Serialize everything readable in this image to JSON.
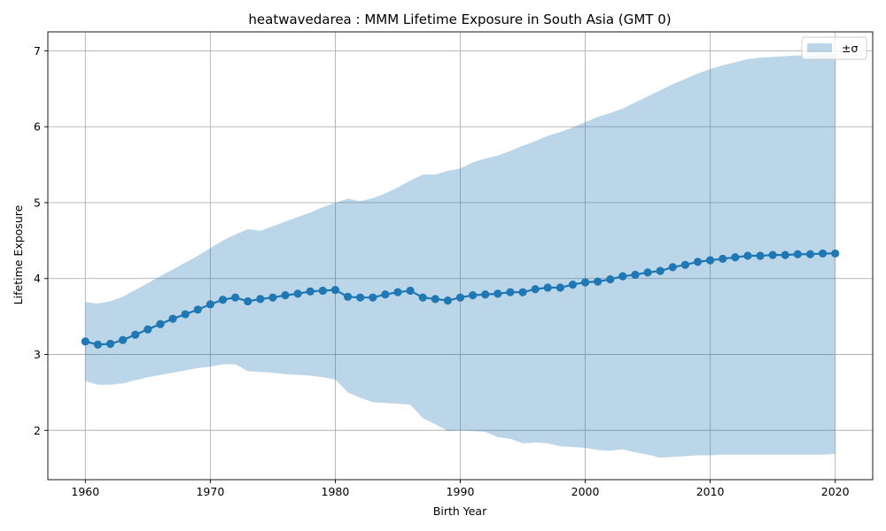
{
  "chart_data": {
    "type": "line",
    "title": "heatwavedarea : MMM Lifetime Exposure in South Asia (GMT 0)",
    "xlabel": "Birth Year",
    "ylabel": "Lifetime Exposure",
    "xlim": [
      1957,
      2023
    ],
    "ylim": [
      1.35,
      7.25
    ],
    "xticks": [
      1960,
      1970,
      1980,
      1990,
      2000,
      2010,
      2020
    ],
    "yticks": [
      2,
      3,
      4,
      5,
      6,
      7
    ],
    "grid": true,
    "legend": {
      "placement": "top-right",
      "entries": [
        {
          "label": "±σ",
          "kind": "band"
        }
      ]
    },
    "colors": {
      "line": "#1f77b4",
      "band": "#1f77b4",
      "band_opacity": 0.3
    },
    "x": [
      1960,
      1961,
      1962,
      1963,
      1964,
      1965,
      1966,
      1967,
      1968,
      1969,
      1970,
      1971,
      1972,
      1973,
      1974,
      1975,
      1976,
      1977,
      1978,
      1979,
      1980,
      1981,
      1982,
      1983,
      1984,
      1985,
      1986,
      1987,
      1988,
      1989,
      1990,
      1991,
      1992,
      1993,
      1994,
      1995,
      1996,
      1997,
      1998,
      1999,
      2000,
      2001,
      2002,
      2003,
      2004,
      2005,
      2006,
      2007,
      2008,
      2009,
      2010,
      2011,
      2012,
      2013,
      2014,
      2015,
      2016,
      2017,
      2018,
      2019,
      2020
    ],
    "series": [
      {
        "kind": "line",
        "values": [
          3.17,
          3.13,
          3.14,
          3.19,
          3.26,
          3.33,
          3.4,
          3.47,
          3.53,
          3.59,
          3.66,
          3.72,
          3.75,
          3.7,
          3.73,
          3.75,
          3.78,
          3.8,
          3.83,
          3.84,
          3.85,
          3.76,
          3.75,
          3.75,
          3.79,
          3.82,
          3.84,
          3.75,
          3.73,
          3.71,
          3.75,
          3.78,
          3.79,
          3.8,
          3.82,
          3.82,
          3.86,
          3.88,
          3.88,
          3.92,
          3.95,
          3.96,
          3.99,
          4.03,
          4.05,
          4.08,
          4.1,
          4.15,
          4.18,
          4.22,
          4.24,
          4.26,
          4.28,
          4.3,
          4.3,
          4.31,
          4.31,
          4.32,
          4.32,
          4.33,
          4.33
        ]
      },
      {
        "name": "±σ",
        "kind": "band",
        "upper": [
          3.69,
          3.67,
          3.7,
          3.76,
          3.85,
          3.94,
          4.03,
          4.12,
          4.21,
          4.3,
          4.4,
          4.5,
          4.58,
          4.65,
          4.63,
          4.69,
          4.75,
          4.81,
          4.87,
          4.94,
          5.0,
          5.05,
          5.02,
          5.06,
          5.12,
          5.2,
          5.29,
          5.37,
          5.37,
          5.42,
          5.45,
          5.53,
          5.58,
          5.62,
          5.68,
          5.75,
          5.81,
          5.88,
          5.93,
          5.99,
          6.06,
          6.13,
          6.18,
          6.24,
          6.32,
          6.4,
          6.48,
          6.56,
          6.63,
          6.7,
          6.76,
          6.81,
          6.85,
          6.89,
          6.91,
          6.92,
          6.93,
          6.94,
          6.94,
          6.95,
          6.95
        ],
        "lower": [
          2.65,
          2.6,
          2.6,
          2.62,
          2.66,
          2.7,
          2.73,
          2.76,
          2.79,
          2.82,
          2.84,
          2.87,
          2.87,
          2.78,
          2.77,
          2.76,
          2.74,
          2.73,
          2.72,
          2.7,
          2.67,
          2.5,
          2.43,
          2.37,
          2.36,
          2.35,
          2.34,
          2.16,
          2.08,
          1.99,
          2.0,
          1.99,
          1.98,
          1.91,
          1.89,
          1.83,
          1.84,
          1.83,
          1.79,
          1.78,
          1.77,
          1.74,
          1.73,
          1.75,
          1.71,
          1.68,
          1.64,
          1.65,
          1.66,
          1.67,
          1.67,
          1.68,
          1.68,
          1.68,
          1.68,
          1.68,
          1.68,
          1.68,
          1.68,
          1.68,
          1.69
        ]
      }
    ]
  }
}
